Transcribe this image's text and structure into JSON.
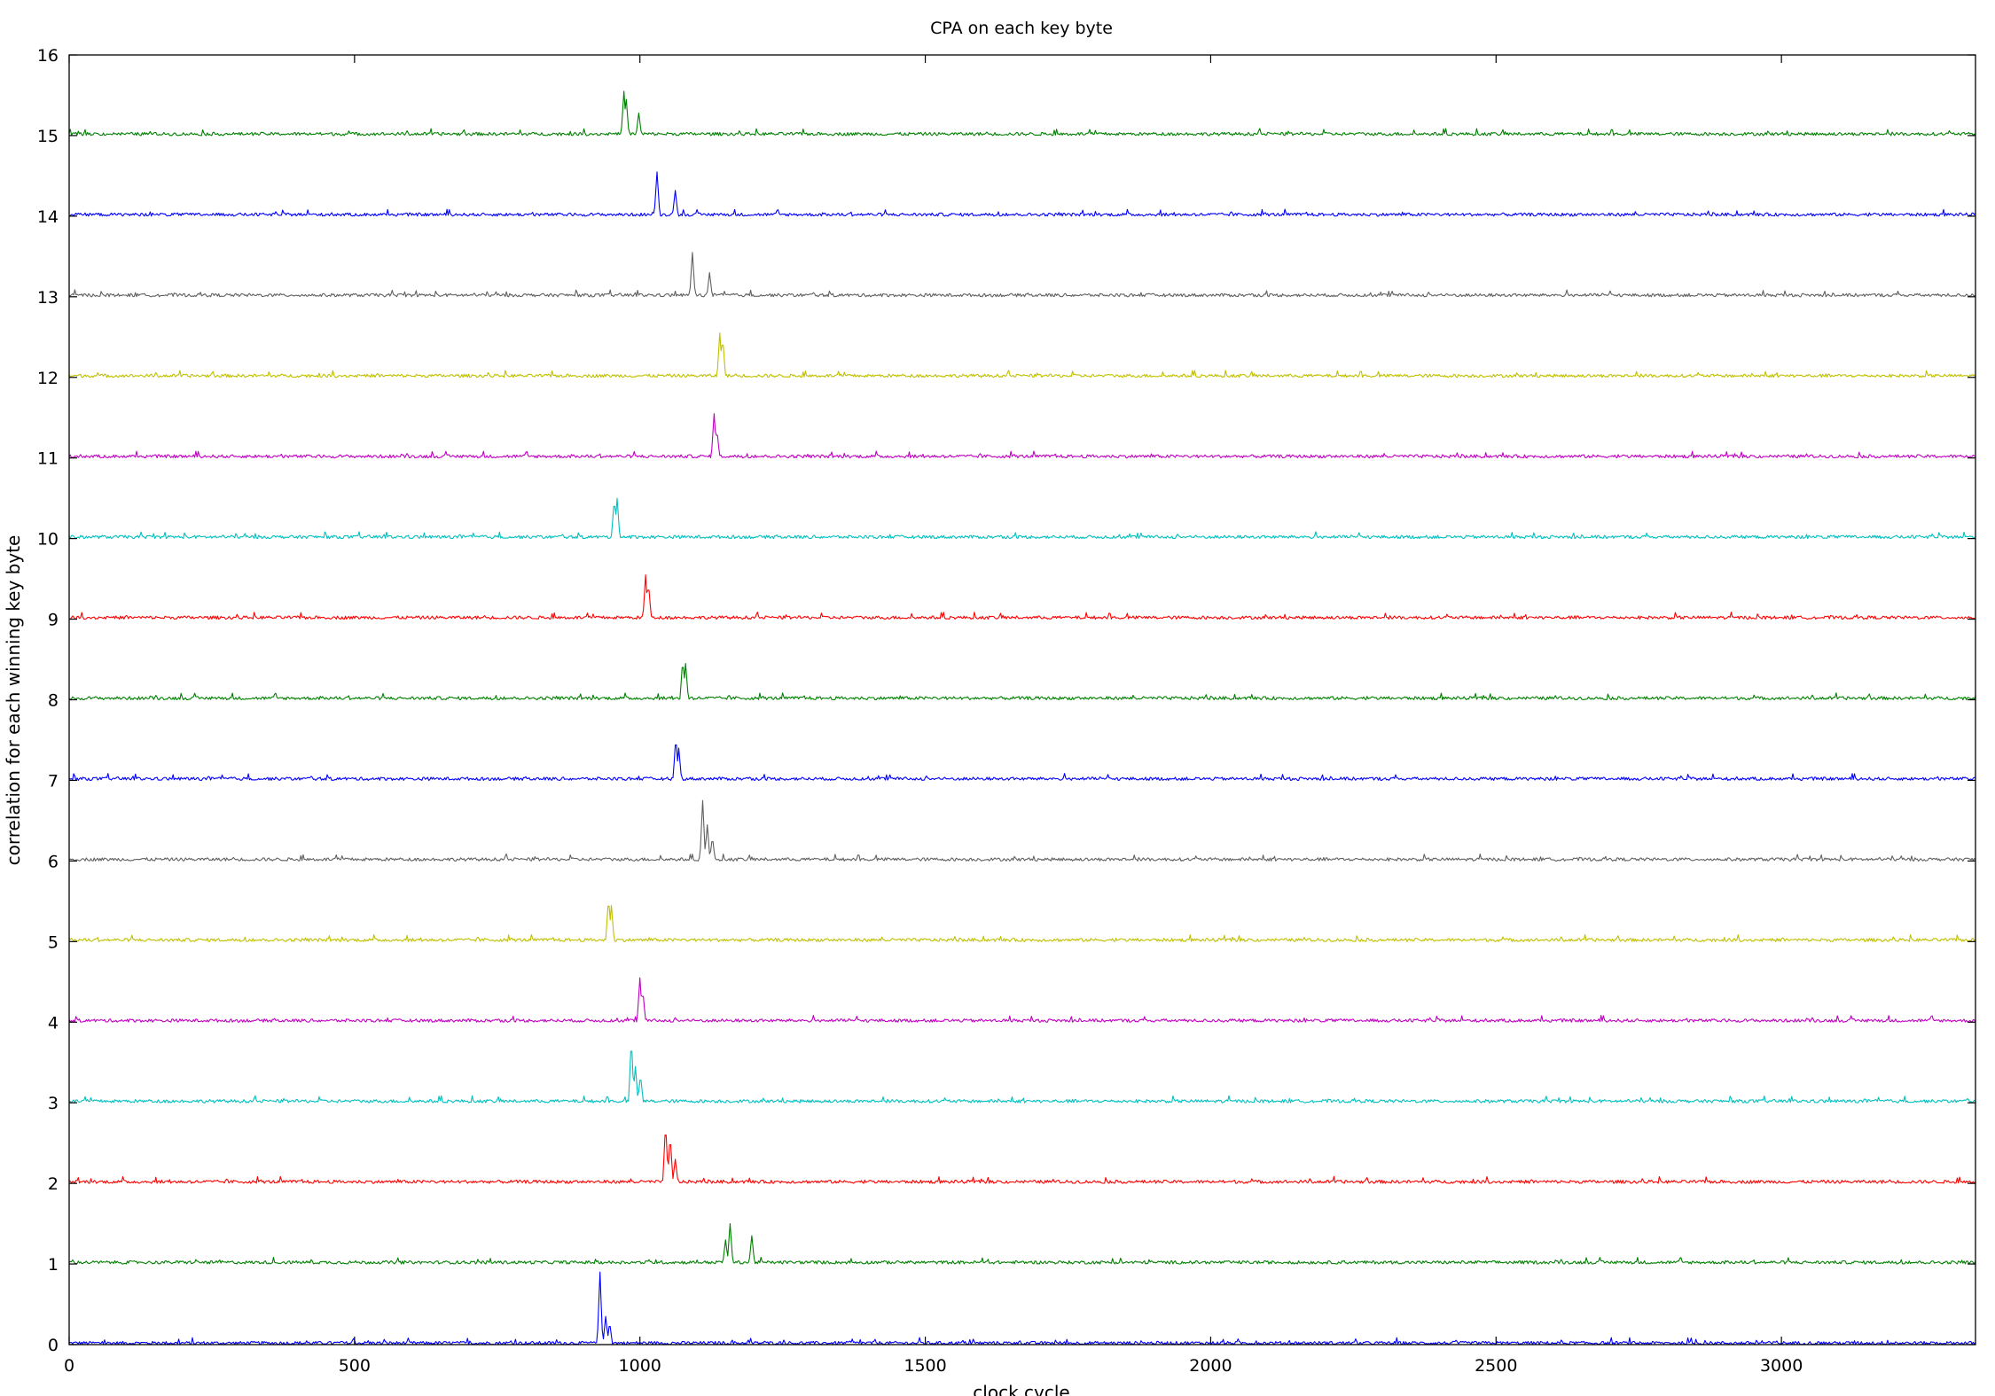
{
  "chart_data": {
    "type": "line",
    "title": "CPA on each key byte",
    "xlabel": "clock cycle",
    "ylabel": "correlation for each winning key byte",
    "xlim": [
      0,
      3340
    ],
    "ylim": [
      0,
      16
    ],
    "x_ticks": [
      0,
      500,
      1000,
      1500,
      2000,
      2500,
      3000
    ],
    "y_ticks": [
      0,
      1,
      2,
      3,
      4,
      5,
      6,
      7,
      8,
      9,
      10,
      11,
      12,
      13,
      14,
      15,
      16
    ],
    "grid": false,
    "legend": "none",
    "noise_amplitude": 0.04,
    "series": [
      {
        "offset": 0,
        "color": "#0000ff",
        "peaks": [
          [
            930,
            0.9
          ],
          [
            940,
            0.35
          ],
          [
            947,
            0.28
          ]
        ]
      },
      {
        "offset": 1,
        "color": "#008000",
        "peaks": [
          [
            1150,
            0.3
          ],
          [
            1158,
            0.5
          ],
          [
            1196,
            0.35
          ]
        ]
      },
      {
        "offset": 2,
        "color": "#ff0000",
        "peaks": [
          [
            1045,
            0.75
          ],
          [
            1053,
            0.6
          ],
          [
            1062,
            0.3
          ]
        ]
      },
      {
        "offset": 3,
        "color": "#00c0c0",
        "peaks": [
          [
            985,
            0.8
          ],
          [
            992,
            0.45
          ],
          [
            1001,
            0.35
          ]
        ]
      },
      {
        "offset": 4,
        "color": "#c000c0",
        "peaks": [
          [
            1000,
            0.55
          ],
          [
            1005,
            0.4
          ]
        ]
      },
      {
        "offset": 5,
        "color": "#c0c000",
        "peaks": [
          [
            945,
            0.55
          ],
          [
            950,
            0.45
          ]
        ]
      },
      {
        "offset": 6,
        "color": "#606060",
        "peaks": [
          [
            1110,
            0.75
          ],
          [
            1118,
            0.45
          ],
          [
            1127,
            0.3
          ]
        ]
      },
      {
        "offset": 7,
        "color": "#0000ff",
        "peaks": [
          [
            1063,
            0.55
          ],
          [
            1068,
            0.4
          ]
        ]
      },
      {
        "offset": 8,
        "color": "#008000",
        "peaks": [
          [
            1075,
            0.5
          ],
          [
            1080,
            0.45
          ]
        ]
      },
      {
        "offset": 9,
        "color": "#ff0000",
        "peaks": [
          [
            1010,
            0.55
          ],
          [
            1015,
            0.45
          ]
        ]
      },
      {
        "offset": 10,
        "color": "#00c0c0",
        "peaks": [
          [
            955,
            0.5
          ],
          [
            960,
            0.5
          ]
        ]
      },
      {
        "offset": 11,
        "color": "#c000c0",
        "peaks": [
          [
            1130,
            0.55
          ],
          [
            1135,
            0.35
          ]
        ]
      },
      {
        "offset": 12,
        "color": "#c0c000",
        "peaks": [
          [
            1140,
            0.55
          ],
          [
            1145,
            0.5
          ]
        ]
      },
      {
        "offset": 13,
        "color": "#606060",
        "peaks": [
          [
            1092,
            0.55
          ],
          [
            1122,
            0.3
          ]
        ]
      },
      {
        "offset": 14,
        "color": "#0000ff",
        "peaks": [
          [
            1030,
            0.55
          ],
          [
            1062,
            0.32
          ]
        ]
      },
      {
        "offset": 15,
        "color": "#008000",
        "peaks": [
          [
            972,
            0.55
          ],
          [
            976,
            0.45
          ],
          [
            998,
            0.28
          ]
        ]
      }
    ]
  }
}
